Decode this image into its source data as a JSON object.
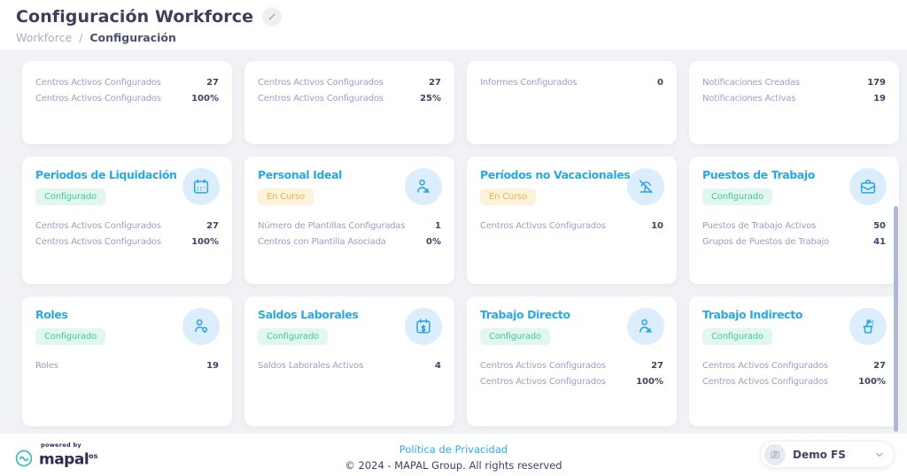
{
  "header": {
    "title": "Configuración Workforce",
    "edit_icon": "pencil-icon",
    "breadcrumb": {
      "parent": "Workforce",
      "separator": "/",
      "current": "Configuración"
    }
  },
  "cards": [
    {
      "metrics": [
        {
          "label": "Centros Activos Configurados",
          "value": "27"
        },
        {
          "label": "Centros Activos Configurados",
          "value": "100%"
        }
      ]
    },
    {
      "metrics": [
        {
          "label": "Centros Activos Configurados",
          "value": "27"
        },
        {
          "label": "Centros Activos Configurados",
          "value": "25%"
        }
      ]
    },
    {
      "metrics": [
        {
          "label": "Informes Configurados",
          "value": "0"
        }
      ]
    },
    {
      "metrics": [
        {
          "label": "Notificaciones Creadas",
          "value": "179"
        },
        {
          "label": "Notificaciones Activas",
          "value": "19"
        }
      ]
    },
    {
      "title": "Periodos de Liquidación",
      "status": "Configurado",
      "status_type": "done",
      "icon": "calendar-icon",
      "metrics": [
        {
          "label": "Centros Activos Configurados",
          "value": "27"
        },
        {
          "label": "Centros Activos Configurados",
          "value": "100%"
        }
      ]
    },
    {
      "title": "Personal Ideal",
      "status": "En Curso",
      "status_type": "in-progress",
      "icon": "person-desk-icon",
      "metrics": [
        {
          "label": "Número de Plantillas Configuradas",
          "value": "1"
        },
        {
          "label": "Centros con Plantilla Asociada",
          "value": "0%"
        }
      ]
    },
    {
      "title": "Períodos no Vacacionales",
      "status": "En Curso",
      "status_type": "in-progress",
      "icon": "no-vacation-icon",
      "metrics": [
        {
          "label": "Centros Activos Configurados",
          "value": "10"
        }
      ]
    },
    {
      "title": "Puestos de Trabajo",
      "status": "Configurado",
      "status_type": "done",
      "icon": "briefcase-icon",
      "metrics": [
        {
          "label": "Puestos de Trabajo Activos",
          "value": "50"
        },
        {
          "label": "Grupos de Puestos de Trabajo",
          "value": "41"
        }
      ]
    },
    {
      "title": "Roles",
      "status": "Configurado",
      "status_type": "done",
      "icon": "user-role-icon",
      "metrics": [
        {
          "label": "Roles",
          "value": "19"
        }
      ]
    },
    {
      "title": "Saldos Laborales",
      "status": "Configurado",
      "status_type": "done",
      "icon": "calendar-money-icon",
      "metrics": [
        {
          "label": "Saldos Laborales Activos",
          "value": "4"
        }
      ]
    },
    {
      "title": "Trabajo Directo",
      "status": "Configurado",
      "status_type": "done",
      "icon": "worker-icon",
      "metrics": [
        {
          "label": "Centros Activos Configurados",
          "value": "27"
        },
        {
          "label": "Centros Activos Configurados",
          "value": "100%"
        }
      ]
    },
    {
      "title": "Trabajo Indirecto",
      "status": "Configurado",
      "status_type": "done",
      "icon": "cleaning-bucket-icon",
      "metrics": [
        {
          "label": "Centros Activos Configurados",
          "value": "27"
        },
        {
          "label": "Centros Activos Configurados",
          "value": "100%"
        }
      ]
    }
  ],
  "footer": {
    "powered_by": "powered by",
    "brand": "mapal",
    "brand_suffix": "os",
    "brand_icon": "wave-icon",
    "privacy_link": "Política de Privacidad",
    "copyright": "© 2024 - MAPAL Group. All rights reserved",
    "account_selector": {
      "label": "Demo FS",
      "icon": "image-placeholder-icon",
      "chevron": "chevron-down-icon"
    }
  },
  "colors": {
    "accent_blue": "#29a9e2",
    "badge_done_bg": "#e2f8ef",
    "badge_done_text": "#43c79c",
    "badge_progress_bg": "#fdf3da",
    "badge_progress_text": "#e2b256",
    "icon_circle_bg": "#dceefb",
    "background": "#f1f2f6",
    "brand_navy": "#2e2a54",
    "brand_teal": "#3cb8b2"
  }
}
